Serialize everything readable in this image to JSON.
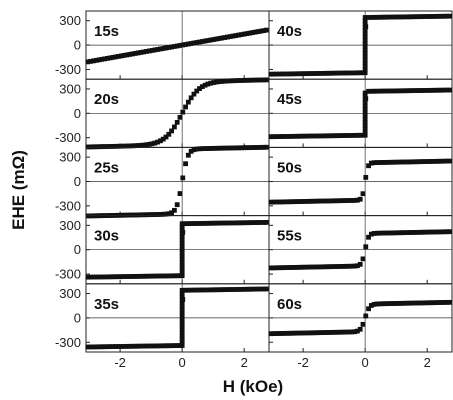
{
  "chart_data": {
    "type": "scatter",
    "xlabel": "H (kOe)",
    "ylabel": "EHE (mΩ)",
    "xlim": [
      -3.1,
      2.8
    ],
    "ylim": [
      -420,
      420
    ],
    "x_ticks": [
      -2,
      0,
      2
    ],
    "x_tick_labels": [
      "-2",
      "0",
      "2"
    ],
    "y_ticks": [
      300,
      0,
      -300
    ],
    "y_tick_labels": [
      "300",
      "0",
      "-300"
    ],
    "grid": "zero-lines",
    "layout": "5 rows x 2 columns, shared axes",
    "marker_color": "#111111",
    "panels": [
      {
        "label": "15s",
        "shape": "linear",
        "sat": 190,
        "w": 0
      },
      {
        "label": "20s",
        "shape": "smooth",
        "sat": 390,
        "w": 0.55
      },
      {
        "label": "25s",
        "shape": "smooth",
        "sat": 400,
        "w": 0.18
      },
      {
        "label": "30s",
        "shape": "step",
        "sat": 320,
        "w": 0
      },
      {
        "label": "35s",
        "shape": "step",
        "sat": 340,
        "w": 0
      },
      {
        "label": "40s",
        "shape": "step",
        "sat": 340,
        "w": 0
      },
      {
        "label": "45s",
        "shape": "step",
        "sat": 270,
        "w": 0
      },
      {
        "label": "50s",
        "shape": "smooth",
        "sat": 230,
        "w": 0.09
      },
      {
        "label": "55s",
        "shape": "smooth",
        "sat": 200,
        "w": 0.11
      },
      {
        "label": "60s",
        "shape": "smooth",
        "sat": 170,
        "w": 0.14
      }
    ]
  }
}
